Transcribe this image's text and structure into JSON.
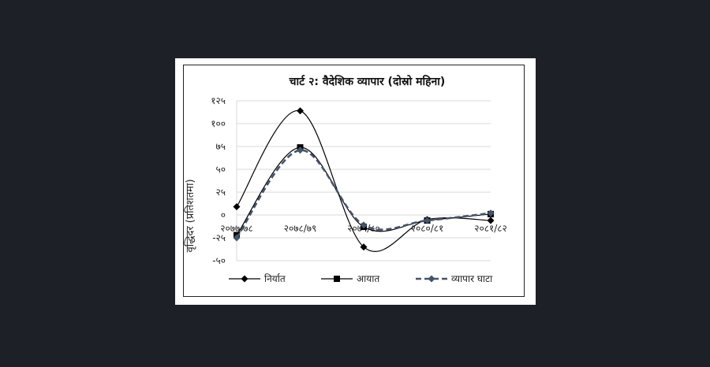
{
  "chart_data": {
    "type": "line",
    "title": "चार्ट २: वैदेशिक व्यापार (दोस्रो महिना)",
    "ylabel": "वृद्धिदर (प्रतिशतमा)",
    "xlabel": "",
    "categories": [
      "२०७७/७८",
      "२०७८/७९",
      "२०७९/८०",
      "२०८०/८१",
      "२०८१/८२"
    ],
    "yticks": [
      -50,
      -25,
      0,
      25,
      50,
      75,
      100,
      125
    ],
    "ytick_labels": [
      "-५०",
      "-२५",
      "०",
      "२५",
      "५०",
      "७५",
      "१००",
      "१२५"
    ],
    "ylim": [
      -50,
      125
    ],
    "grid": true,
    "legend_position": "bottom",
    "series": [
      {
        "name": "निर्यात",
        "values": [
          9,
          114,
          -35,
          -5,
          -6
        ],
        "color": "#000000",
        "marker": "diamond",
        "dash": "solid"
      },
      {
        "name": "आयात",
        "values": [
          -22,
          74,
          -13,
          -6,
          1
        ],
        "color": "#000000",
        "marker": "square",
        "dash": "solid"
      },
      {
        "name": "व्यापार घाटा",
        "values": [
          -25,
          71,
          -11,
          -6,
          2
        ],
        "color": "#44546a",
        "marker": "diamond",
        "dash": "dashed"
      }
    ]
  }
}
